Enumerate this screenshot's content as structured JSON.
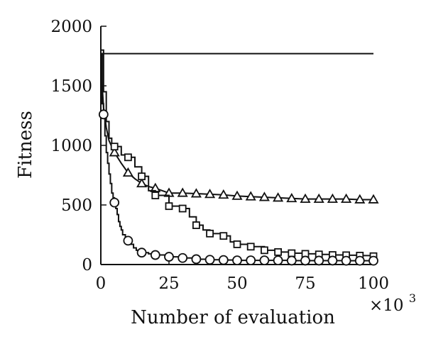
{
  "chart_data": {
    "type": "line",
    "title": "",
    "xlabel": "Number of evaluation",
    "ylabel": "Fitness",
    "x_multiplier_label": "×10",
    "x_multiplier_exponent": "3",
    "xlim": [
      0,
      100
    ],
    "ylim": [
      0,
      2000
    ],
    "x_ticks": [
      0,
      25,
      50,
      75,
      100
    ],
    "y_ticks": [
      0,
      500,
      1000,
      1500,
      2000
    ],
    "grid": false,
    "legend": "none",
    "line_color": "#111111",
    "series": [
      {
        "marker": "none",
        "step": false,
        "points": [
          [
            0,
            1770
          ],
          [
            100,
            1770
          ]
        ]
      },
      {
        "marker": "triangle",
        "step": false,
        "marker_x": [
          5,
          10,
          15,
          20,
          25,
          30,
          35,
          40,
          45,
          50,
          55,
          60,
          65,
          70,
          75,
          80,
          85,
          90,
          95,
          100
        ],
        "points": [
          [
            0,
            1770
          ],
          [
            0.5,
            1500
          ],
          [
            1,
            1320
          ],
          [
            2,
            1150
          ],
          [
            3,
            1040
          ],
          [
            5,
            940
          ],
          [
            7.5,
            850
          ],
          [
            10,
            770
          ],
          [
            12.5,
            720
          ],
          [
            15,
            680
          ],
          [
            17.5,
            655
          ],
          [
            20,
            640
          ],
          [
            25,
            600
          ],
          [
            30,
            600
          ],
          [
            35,
            595
          ],
          [
            40,
            590
          ],
          [
            45,
            585
          ],
          [
            50,
            575
          ],
          [
            55,
            570
          ],
          [
            60,
            565
          ],
          [
            65,
            560
          ],
          [
            70,
            555
          ],
          [
            75,
            550
          ],
          [
            80,
            550
          ],
          [
            85,
            550
          ],
          [
            90,
            550
          ],
          [
            95,
            545
          ],
          [
            100,
            545
          ]
        ]
      },
      {
        "marker": "square",
        "step": true,
        "marker_x": [
          5,
          10,
          15,
          20,
          25,
          30,
          35,
          40,
          45,
          50,
          55,
          60,
          65,
          70,
          75,
          80,
          85,
          90,
          95,
          100
        ],
        "points": [
          [
            0,
            1800
          ],
          [
            1,
            1450
          ],
          [
            2,
            1200
          ],
          [
            3,
            1060
          ],
          [
            4,
            1000
          ],
          [
            5,
            990
          ],
          [
            7.5,
            920
          ],
          [
            10,
            900
          ],
          [
            12.5,
            820
          ],
          [
            15,
            740
          ],
          [
            17.5,
            620
          ],
          [
            20,
            580
          ],
          [
            22.5,
            580
          ],
          [
            25,
            490
          ],
          [
            30,
            470
          ],
          [
            32.5,
            400
          ],
          [
            35,
            330
          ],
          [
            37.5,
            290
          ],
          [
            40,
            260
          ],
          [
            45,
            240
          ],
          [
            47.5,
            190
          ],
          [
            50,
            170
          ],
          [
            55,
            150
          ],
          [
            60,
            120
          ],
          [
            65,
            105
          ],
          [
            70,
            95
          ],
          [
            75,
            90
          ],
          [
            80,
            85
          ],
          [
            85,
            80
          ],
          [
            90,
            78
          ],
          [
            95,
            75
          ],
          [
            100,
            70
          ]
        ]
      },
      {
        "marker": "circle",
        "step": true,
        "marker_x": [
          1,
          5,
          10,
          15,
          20,
          25,
          30,
          35,
          40,
          45,
          50,
          55,
          60,
          65,
          70,
          75,
          80,
          85,
          90,
          95,
          100
        ],
        "points": [
          [
            0,
            1770
          ],
          [
            0.5,
            1350
          ],
          [
            1,
            1260
          ],
          [
            1.5,
            1080
          ],
          [
            2,
            940
          ],
          [
            2.5,
            850
          ],
          [
            3,
            760
          ],
          [
            3.5,
            680
          ],
          [
            4,
            600
          ],
          [
            4.5,
            560
          ],
          [
            5,
            520
          ],
          [
            5.5,
            470
          ],
          [
            6,
            420
          ],
          [
            6.5,
            360
          ],
          [
            7,
            320
          ],
          [
            7.5,
            290
          ],
          [
            8,
            250
          ],
          [
            9,
            220
          ],
          [
            10,
            200
          ],
          [
            11,
            170
          ],
          [
            12,
            140
          ],
          [
            13,
            120
          ],
          [
            14,
            110
          ],
          [
            15,
            100
          ],
          [
            17.5,
            90
          ],
          [
            20,
            80
          ],
          [
            25,
            65
          ],
          [
            30,
            55
          ],
          [
            35,
            45
          ],
          [
            40,
            40
          ],
          [
            45,
            38
          ],
          [
            50,
            35
          ],
          [
            55,
            35
          ],
          [
            60,
            35
          ],
          [
            65,
            35
          ],
          [
            70,
            33
          ],
          [
            75,
            33
          ],
          [
            80,
            33
          ],
          [
            85,
            33
          ],
          [
            90,
            32
          ],
          [
            95,
            32
          ],
          [
            100,
            32
          ]
        ]
      }
    ]
  }
}
